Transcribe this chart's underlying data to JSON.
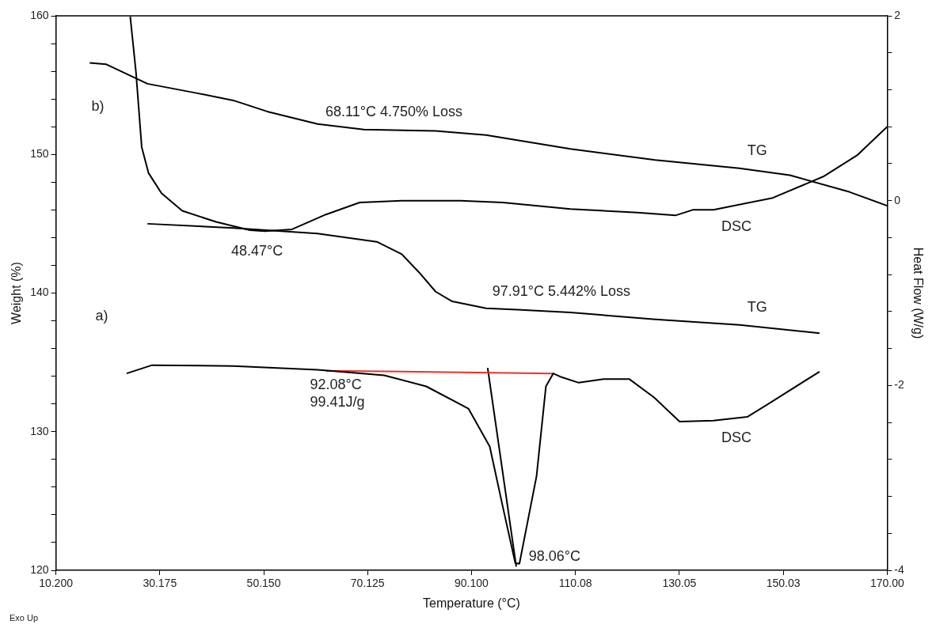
{
  "chart_data": {
    "type": "line",
    "xlabel": "Temperature (°C)",
    "ylabel": "Weight (%)",
    "y2label": "Heat Flow (W/g)",
    "xlim": [
      10.2,
      170
    ],
    "xticks": [
      {
        "value": 10.2,
        "label": "10.200"
      },
      {
        "value": 30.175,
        "label": "30.175"
      },
      {
        "value": 50.15,
        "label": "50.150"
      },
      {
        "value": 70.125,
        "label": "70.125"
      },
      {
        "value": 90.1,
        "label": "90.100"
      },
      110.08,
      130.05,
      150.03,
      {
        "value": 170,
        "label": "170.00"
      }
    ],
    "ylim": [
      120,
      160
    ],
    "yticks": [
      120,
      {
        "value": 122,
        "label": null
      },
      {
        "value": 124,
        "label": null
      },
      {
        "value": 126,
        "label": null
      },
      {
        "value": 128,
        "label": null
      },
      130,
      {
        "value": 132,
        "label": null
      },
      {
        "value": 134,
        "label": null
      },
      {
        "value": 136,
        "label": null
      },
      {
        "value": 138,
        "label": null
      },
      140,
      {
        "value": 142,
        "label": null
      },
      {
        "value": 144,
        "label": null
      },
      {
        "value": 146,
        "label": null
      },
      {
        "value": 148,
        "label": null
      },
      150,
      {
        "value": 152,
        "label": null
      },
      {
        "value": 154,
        "label": null
      },
      {
        "value": 156,
        "label": null
      },
      {
        "value": 158,
        "label": null
      },
      160
    ],
    "y2lim": [
      -4,
      2
    ],
    "y2ticks": [
      -4,
      {
        "value": -3.6,
        "label": null
      },
      {
        "value": -3.2,
        "label": null
      },
      {
        "value": -2.8,
        "label": null
      },
      {
        "value": -2.4,
        "label": null
      },
      -2,
      {
        "value": -1.6,
        "label": null
      },
      {
        "value": -1.2,
        "label": null
      },
      {
        "value": -0.8,
        "label": null
      },
      {
        "value": -0.4,
        "label": null
      },
      0,
      {
        "value": 0.4,
        "label": null
      },
      {
        "value": 0.8,
        "label": null
      },
      {
        "value": 1.2,
        "label": null
      },
      {
        "value": 1.6,
        "label": null
      },
      2
    ],
    "grid": false,
    "legend": false,
    "marker": "none",
    "line_style": "solid",
    "series": [
      {
        "name": "TG",
        "color": "#000000",
        "axis": "y",
        "x": [
          16.7,
          19.9,
          27.8,
          37.6,
          44.3,
          50.8,
          60.5,
          69.4,
          83.2,
          92.9,
          109.1,
          125.4,
          141.6,
          151.3,
          162.7,
          170
        ],
        "values": [
          156.6,
          156.5,
          155.1,
          154.4,
          153.9,
          153.1,
          152.2,
          151.8,
          151.7,
          151.4,
          150.4,
          149.6,
          149.0,
          148.5,
          147.3,
          146.3
        ]
      },
      {
        "name": "DSC",
        "color": "#000000",
        "axis": "y2",
        "x": [
          24.5,
          25.6,
          26.7,
          28.0,
          30.5,
          34.5,
          41.0,
          47.5,
          50.4,
          55.6,
          62.1,
          68.6,
          76.7,
          88.0,
          96.1,
          109.1,
          122.0,
          129.3,
          132.6,
          136.6,
          148.0,
          157.7,
          164.2,
          170
        ],
        "values": [
          1.99,
          1.39,
          0.58,
          0.3,
          0.08,
          -0.11,
          -0.23,
          -0.32,
          -0.33,
          -0.31,
          -0.15,
          -0.02,
          0,
          0,
          -0.02,
          -0.09,
          -0.13,
          -0.16,
          -0.1,
          -0.1,
          0.03,
          0.26,
          0.49,
          0.8
        ]
      },
      {
        "name": "TG",
        "color": "#000000",
        "axis": "y",
        "x": [
          27.8,
          44.3,
          60.5,
          71.9,
          76.7,
          80.0,
          83.2,
          86.4,
          92.9,
          98.9,
          109.1,
          125.4,
          141.6,
          157.0
        ],
        "values": [
          145.0,
          144.7,
          144.3,
          143.7,
          142.8,
          141.5,
          140.1,
          139.4,
          138.9,
          138.8,
          138.6,
          138.1,
          137.7,
          137.1
        ]
      },
      {
        "name": "DSC",
        "color": "#000000",
        "axis": "y2",
        "x": [
          23.8,
          28.7,
          44.3,
          60.5,
          73.3,
          81.4,
          89.5,
          93.6,
          96.1,
          98.5,
          99.3,
          102.6,
          104.4,
          105.8,
          107.4,
          110.7,
          115.5,
          120.4,
          125.2,
          130.1,
          136.6,
          143.1,
          148.0,
          157.0
        ],
        "values": [
          -1.87,
          -1.78,
          -1.79,
          -1.83,
          -1.89,
          -2.01,
          -2.25,
          -2.66,
          -3.31,
          -3.92,
          -3.93,
          -2.98,
          -2.01,
          -1.87,
          -1.91,
          -1.97,
          -1.93,
          -1.93,
          -2.13,
          -2.39,
          -2.38,
          -2.34,
          -2.17,
          -1.85
        ]
      },
      {
        "color": "#e8322c",
        "axis": "y2",
        "x": [
          62.1,
          105.8
        ],
        "values": [
          -1.84,
          -1.87
        ]
      },
      {
        "color": "#000000",
        "axis": "y2",
        "x": [
          93.2,
          98.7
        ],
        "values": [
          -1.81,
          -3.96
        ]
      }
    ],
    "annotations": [
      "b)",
      {
        "text": "68.11°C 4.750% Loss",
        "x": 68.11,
        "y": 151.8
      },
      {
        "text": "48.47°C",
        "x": 48.47,
        "y": 144.5
      },
      "a)",
      {
        "text": "97.91°C 5.442% Loss",
        "x": 97.91,
        "y": 138.8
      },
      {
        "text": "92.08°C",
        "x": 62.1,
        "y": 134.6
      },
      {
        "text": "99.41J/g",
        "x": 62.1,
        "y": 134.6
      },
      {
        "text": "98.06°C",
        "x": 98.06,
        "y": 120.4
      },
      "Exo Up"
    ]
  }
}
